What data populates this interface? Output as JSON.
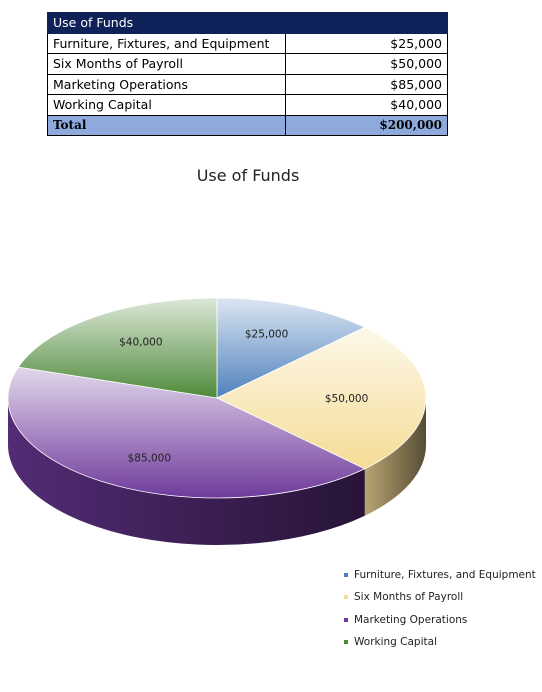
{
  "table": {
    "header": "Use of Funds",
    "rows": [
      {
        "label": "Furniture, Fixtures, and Equipment",
        "amount": "$25,000"
      },
      {
        "label": "Six Months of Payroll",
        "amount": "$50,000"
      },
      {
        "label": "Marketing Operations",
        "amount": "$85,000"
      },
      {
        "label": "Working Capital",
        "amount": "$40,000"
      }
    ],
    "total_label": "Total",
    "total_amount": "$200,000"
  },
  "chart_data": {
    "type": "pie",
    "title": "Use of Funds",
    "legend_position": "bottom-right",
    "categories": [
      "Furniture, Fixtures, and Equipment",
      "Six Months of Payroll",
      "Marketing Operations",
      "Working Capital"
    ],
    "values": [
      25000,
      50000,
      85000,
      40000
    ],
    "data_labels": [
      "$25,000",
      "$50,000",
      "$85,000",
      "$40,000"
    ],
    "colors": [
      "#4f81bd",
      "#f5dc96",
      "#6f3a9c",
      "#4e8a3a"
    ]
  }
}
